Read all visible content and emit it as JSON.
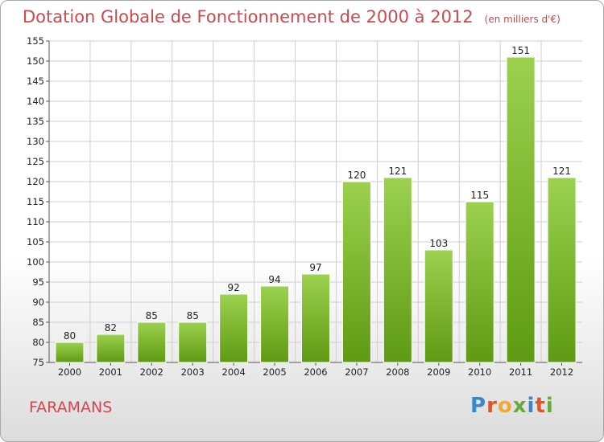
{
  "header": {
    "title": "Dotation Globale de Fonctionnement de 2000 à 2012",
    "unit": "(en milliers d'€)"
  },
  "footer": {
    "place": "FARAMANS",
    "logo_text": "Proxiti",
    "logo_colors": [
      "#3a87c8",
      "#e0542c",
      "#f0a830",
      "#69a83c",
      "#3a87c8",
      "#e0542c",
      "#69a83c"
    ]
  },
  "colors": {
    "title": "#d0474d",
    "bar_top": "#9bd14f",
    "bar_bottom": "#5f9a13",
    "grid": "#cfcfcf"
  },
  "chart_data": {
    "type": "bar",
    "categories": [
      "2000",
      "2001",
      "2002",
      "2003",
      "2004",
      "2005",
      "2006",
      "2007",
      "2008",
      "2009",
      "2010",
      "2011",
      "2012"
    ],
    "values": [
      80,
      82,
      85,
      85,
      92,
      94,
      97,
      120,
      121,
      103,
      115,
      151,
      121
    ],
    "ylim": [
      75,
      155
    ],
    "yticks": [
      75,
      80,
      85,
      90,
      95,
      100,
      105,
      110,
      115,
      120,
      125,
      130,
      135,
      140,
      145,
      150,
      155
    ],
    "grid": true
  }
}
